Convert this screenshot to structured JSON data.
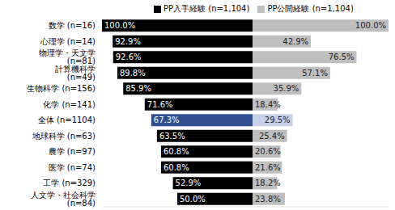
{
  "chart_data": {
    "type": "bar",
    "orientation": "horizontal",
    "legend": "top",
    "data_labels": true,
    "tick_labels": "y",
    "grid": false,
    "xlim": [
      0,
      100
    ],
    "categories": [
      "数学 (n=16)",
      "心理学 (n=14)",
      "物理学・天文学 (n=81)",
      "計算機科学 (n=49)",
      "生物科学 (n=156)",
      "化学 (n=141)",
      "全体 (n=1104)",
      "地球科学 (n=63)",
      "農学 (n=97)",
      "医学 (n=74)",
      "工学 (n=329)",
      "人文学・社会科学 (n=84)"
    ],
    "series": [
      {
        "name": "PP入手経験 (n=1,104)",
        "color": "#000000",
        "colors": [
          "#000000",
          "#000000",
          "#000000",
          "#000000",
          "#000000",
          "#000000",
          "#2f4f8f",
          "#000000",
          "#000000",
          "#000000",
          "#000000",
          "#000000"
        ],
        "values": [
          100.0,
          92.9,
          92.6,
          89.8,
          85.9,
          71.6,
          67.3,
          63.5,
          60.8,
          60.8,
          52.9,
          50.0
        ],
        "value_labels": [
          "100.0%",
          "92.9%",
          "92.6%",
          "89.8%",
          "85.9%",
          "71.6%",
          "67.3%",
          "63.5%",
          "60.8%",
          "60.8%",
          "52.9%",
          "50.0%"
        ]
      },
      {
        "name": "PP公開経験 (n=1,104)",
        "color": "#bfbfbf",
        "colors": [
          "#bfbfbf",
          "#bfbfbf",
          "#bfbfbf",
          "#bfbfbf",
          "#bfbfbf",
          "#bfbfbf",
          "#c6d0e8",
          "#bfbfbf",
          "#bfbfbf",
          "#bfbfbf",
          "#bfbfbf",
          "#bfbfbf"
        ],
        "values": [
          100.0,
          42.9,
          76.5,
          57.1,
          35.9,
          18.4,
          29.5,
          25.4,
          20.6,
          21.6,
          18.2,
          23.8
        ],
        "value_labels": [
          "100.0%",
          "42.9%",
          "76.5%",
          "57.1%",
          "35.9%",
          "18.4%",
          "29.5%",
          "25.4%",
          "20.6%",
          "21.6%",
          "18.2%",
          "23.8%"
        ]
      }
    ]
  }
}
